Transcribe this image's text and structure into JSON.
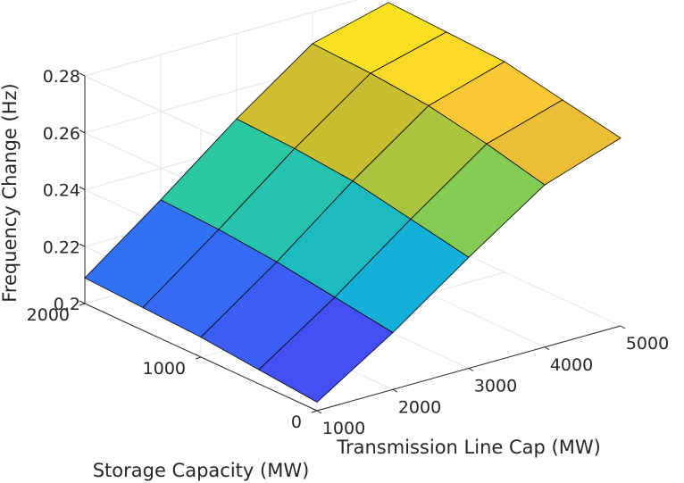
{
  "chart_data": {
    "type": "surface3d",
    "xlabel": "Transmission Line Cap (MW)",
    "ylabel": "Storage Capacity (MW)",
    "zlabel": "Frequency Change (Hz)",
    "xlim": [
      1000,
      5000
    ],
    "ylim": [
      0,
      2000
    ],
    "zlim": [
      0.2,
      0.28
    ],
    "x_ticks": [
      "1000",
      "2000",
      "3000",
      "4000",
      "5000"
    ],
    "y_ticks": [
      "0",
      "1000",
      "2000"
    ],
    "z_ticks": [
      "0.2",
      "0.22",
      "0.24",
      "0.26",
      "0.28"
    ],
    "grid": true,
    "colormap": "parula",
    "x": [
      1000,
      2000,
      3000,
      4000,
      5000
    ],
    "y": [
      0,
      500,
      1000,
      1500,
      2000
    ],
    "z": [
      [
        0.203,
        0.22,
        0.239,
        0.257,
        0.266
      ],
      [
        0.205,
        0.223,
        0.243,
        0.262,
        0.27
      ],
      [
        0.207,
        0.226,
        0.247,
        0.266,
        0.274
      ],
      [
        0.208,
        0.228,
        0.249,
        0.268,
        0.275
      ],
      [
        0.209,
        0.229,
        0.25,
        0.269,
        0.276
      ]
    ]
  }
}
